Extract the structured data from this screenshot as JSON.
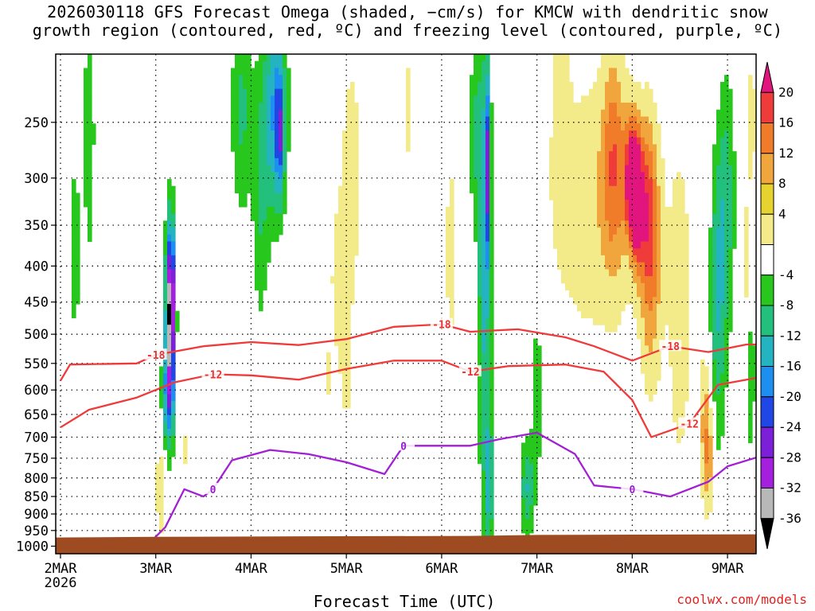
{
  "title_line1": "2026030118 GFS Forecast Omega (shaded, −cm/s) for KMCW with dendritic snow",
  "title_line2": "growth region (contoured, red, ºC) and freezing level (contoured, purple, ºC)",
  "credit": "coolwx.com/models",
  "chart_data": {
    "type": "heatmap",
    "title": "2026030118 GFS Forecast Omega (shaded, −cm/s) for KMCW with dendritic snow growth region (contoured, red, ºC) and freezing level (contoured, purple, ºC)",
    "xlabel": "Forecast Time (UTC)",
    "ylabel": "",
    "x_ticks": [
      {
        "label": "2MAR",
        "sublabel": "2026",
        "value": 0
      },
      {
        "label": "3MAR",
        "value": 1
      },
      {
        "label": "4MAR",
        "value": 2
      },
      {
        "label": "5MAR",
        "value": 3
      },
      {
        "label": "6MAR",
        "value": 4
      },
      {
        "label": "7MAR",
        "value": 5
      },
      {
        "label": "8MAR",
        "value": 6
      },
      {
        "label": "9MAR",
        "value": 7
      }
    ],
    "xlim": [
      -0.05,
      7.3
    ],
    "y_ticks": [
      250,
      300,
      350,
      400,
      450,
      500,
      550,
      600,
      650,
      700,
      750,
      800,
      850,
      900,
      950,
      1000
    ],
    "ylim_hpa": [
      200,
      1025
    ],
    "y_scale": "log-pressure",
    "grid": "dotted",
    "colorbar": {
      "levels": [
        20,
        16,
        12,
        8,
        4,
        -4,
        -8,
        -12,
        -16,
        -20,
        -24,
        -28,
        -32,
        -36
      ],
      "colors": [
        "#e2157f",
        "#f03b3b",
        "#f07c2a",
        "#f0a63c",
        "#e6d330",
        "#f3ea8a",
        "#ffffff",
        "#27c71d",
        "#22c07c",
        "#24b3c0",
        "#1c8ff0",
        "#2046e6",
        "#7b1fd9",
        "#a51fdf",
        "#b8b8b8",
        "#000000"
      ]
    },
    "dgz_contours": [
      {
        "label": "-18",
        "points": [
          [
            0,
            582
          ],
          [
            0.1,
            552
          ],
          [
            0.8,
            550
          ],
          [
            1.0,
            535
          ],
          [
            1.5,
            520
          ],
          [
            2.0,
            513
          ],
          [
            2.5,
            518
          ],
          [
            3.0,
            508
          ],
          [
            3.5,
            488
          ],
          [
            4.0,
            484
          ],
          [
            4.3,
            496
          ],
          [
            4.8,
            492
          ],
          [
            5.3,
            505
          ],
          [
            5.6,
            520
          ],
          [
            6.0,
            545
          ],
          [
            6.4,
            520
          ],
          [
            6.8,
            530
          ],
          [
            7.2,
            517
          ],
          [
            7.35,
            517
          ]
        ]
      },
      {
        "label": "-12",
        "points": [
          [
            0,
            678
          ],
          [
            0.3,
            640
          ],
          [
            0.8,
            615
          ],
          [
            1.2,
            585
          ],
          [
            1.6,
            570
          ],
          [
            2.0,
            572
          ],
          [
            2.5,
            580
          ],
          [
            3.0,
            560
          ],
          [
            3.5,
            545
          ],
          [
            4.0,
            545
          ],
          [
            4.3,
            565
          ],
          [
            4.7,
            555
          ],
          [
            5.3,
            552
          ],
          [
            5.7,
            565
          ],
          [
            6.0,
            620
          ],
          [
            6.2,
            700
          ],
          [
            6.6,
            670
          ],
          [
            6.9,
            590
          ],
          [
            7.2,
            580
          ],
          [
            7.35,
            575
          ]
        ]
      }
    ],
    "freezing_level_contours": [
      {
        "label": "0",
        "points": [
          [
            0.9,
            1000
          ],
          [
            1.1,
            940
          ],
          [
            1.3,
            830
          ],
          [
            1.5,
            850
          ],
          [
            1.6,
            830
          ],
          [
            1.8,
            755
          ],
          [
            2.2,
            730
          ],
          [
            2.6,
            740
          ],
          [
            3.0,
            760
          ],
          [
            3.4,
            790
          ],
          [
            3.6,
            720
          ],
          [
            4.3,
            720
          ],
          [
            4.6,
            705
          ],
          [
            5.0,
            690
          ],
          [
            5.4,
            740
          ],
          [
            5.6,
            820
          ],
          [
            6.0,
            830
          ],
          [
            6.4,
            850
          ],
          [
            6.8,
            810
          ],
          [
            7.0,
            770
          ],
          [
            7.35,
            745
          ]
        ]
      }
    ],
    "omega_features": [
      {
        "time": 1.15,
        "p_top": 360,
        "p_bottom": 620,
        "omega": -36
      },
      {
        "time": 1.18,
        "p_top": 420,
        "p_bottom": 560,
        "omega": -32
      },
      {
        "time": 2.3,
        "p_top": 200,
        "p_bottom": 330,
        "omega": -24
      },
      {
        "time": 4.5,
        "p_top": 200,
        "p_bottom": 920,
        "omega": -20
      },
      {
        "time": 6.05,
        "p_top": 280,
        "p_bottom": 390,
        "omega": 20
      },
      {
        "time": 6.7,
        "p_top": 220,
        "p_bottom": 800,
        "omega": 8
      },
      {
        "time": 6.85,
        "p_top": 650,
        "p_bottom": 890,
        "omega": 12
      }
    ]
  },
  "colors": {
    "dgz": "#f03a3a",
    "freezing": "#a31fd6",
    "terrain": "#9e4b22"
  }
}
